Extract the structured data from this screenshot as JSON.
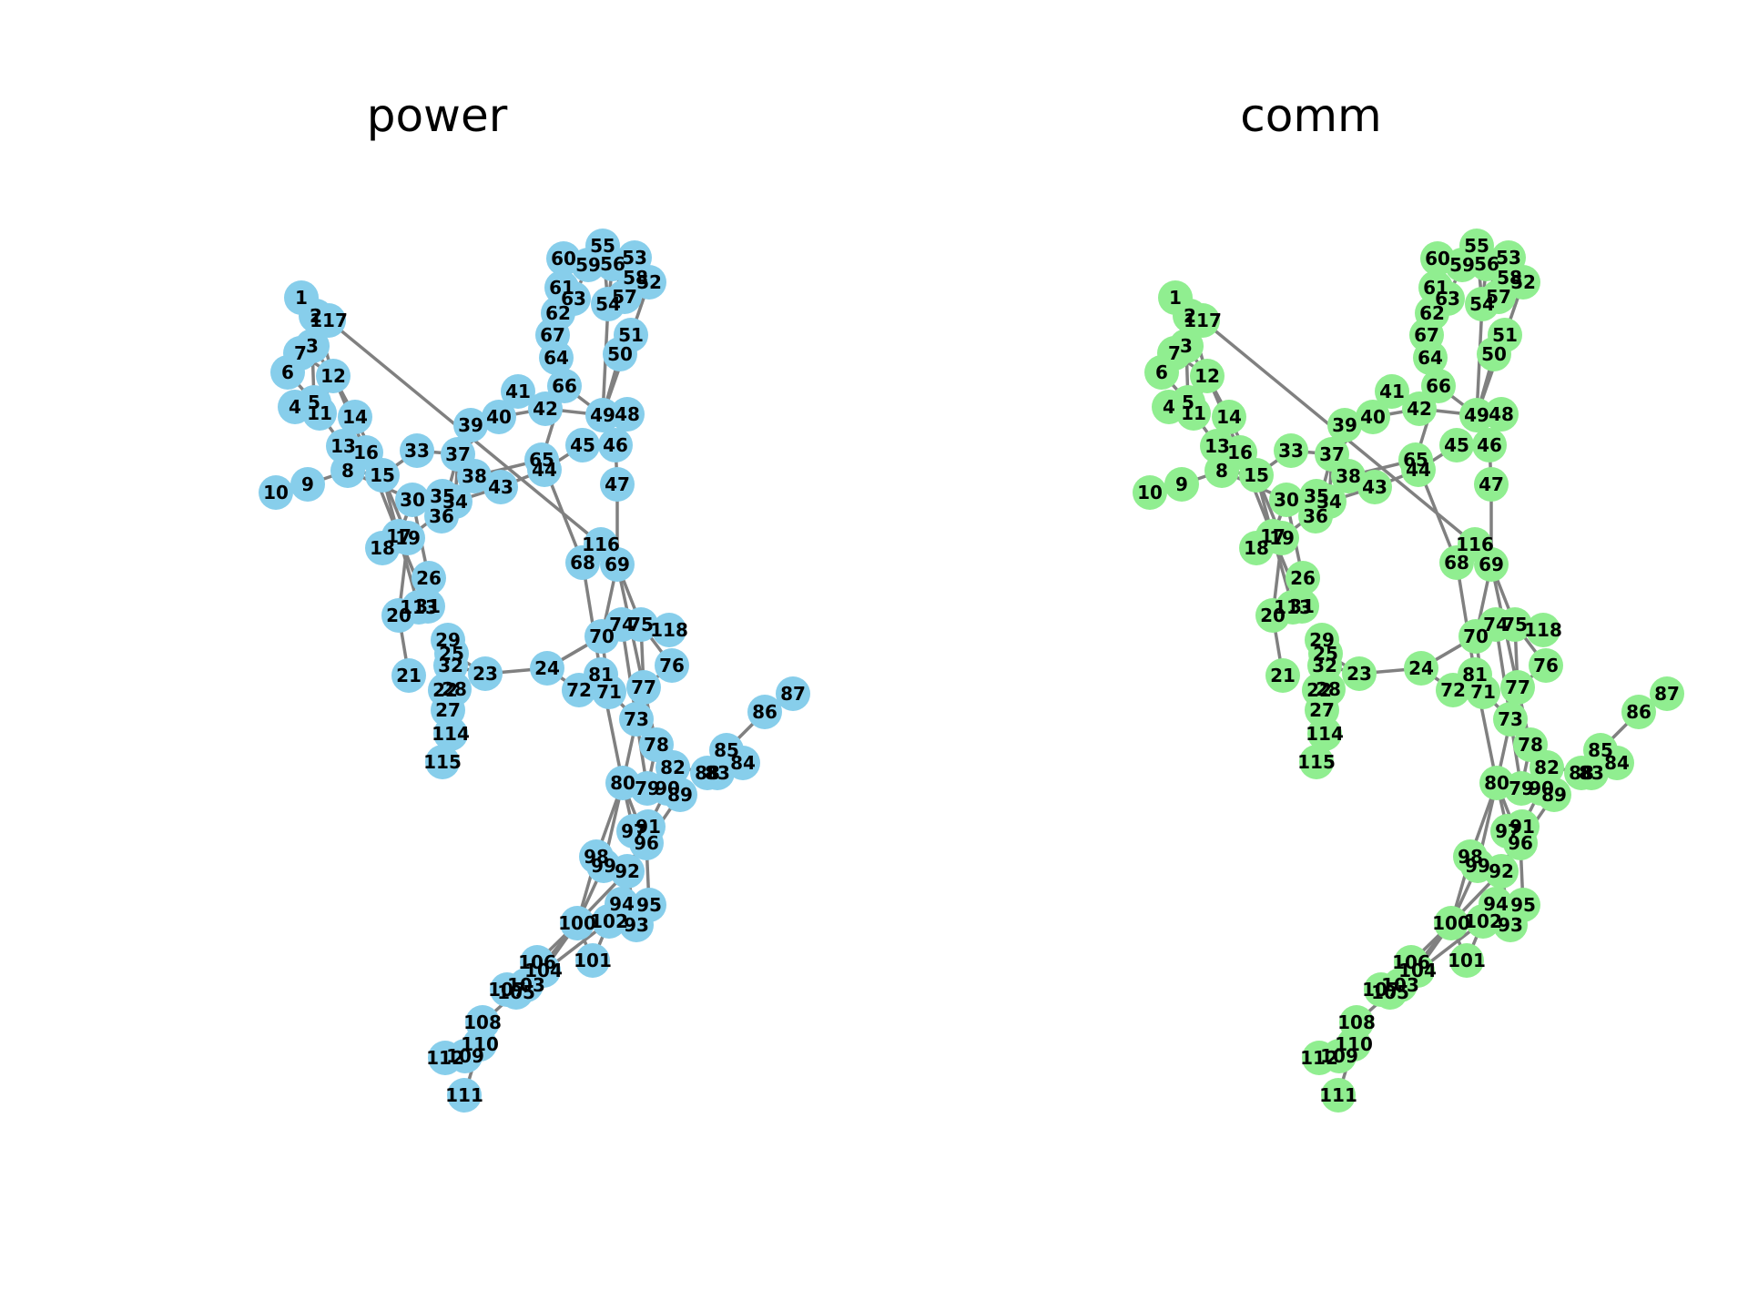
{
  "node_ids": [
    1,
    2,
    3,
    4,
    5,
    6,
    7,
    8,
    9,
    10,
    11,
    12,
    13,
    14,
    15,
    16,
    17,
    18,
    19,
    20,
    21,
    22,
    23,
    24,
    25,
    26,
    27,
    28,
    29,
    30,
    31,
    32,
    33,
    34,
    35,
    36,
    37,
    38,
    39,
    40,
    41,
    42,
    43,
    44,
    45,
    46,
    47,
    48,
    49,
    50,
    51,
    52,
    53,
    54,
    55,
    56,
    57,
    58,
    59,
    60,
    61,
    62,
    63,
    64,
    65,
    66,
    67,
    68,
    69,
    70,
    71,
    72,
    73,
    74,
    75,
    76,
    77,
    78,
    79,
    80,
    81,
    82,
    83,
    84,
    85,
    86,
    87,
    88,
    89,
    90,
    91,
    92,
    93,
    94,
    95,
    96,
    97,
    98,
    99,
    100,
    101,
    102,
    103,
    104,
    105,
    106,
    107,
    108,
    109,
    110,
    111,
    112,
    113,
    114,
    115,
    116,
    117,
    118
  ],
  "edges": [
    [
      1,
      3
    ],
    [
      2,
      12
    ],
    [
      3,
      5
    ],
    [
      3,
      12
    ],
    [
      4,
      11
    ],
    [
      5,
      6
    ],
    [
      5,
      11
    ],
    [
      6,
      7
    ],
    [
      7,
      12
    ],
    [
      8,
      9
    ],
    [
      8,
      30
    ],
    [
      8,
      15
    ],
    [
      9,
      10
    ],
    [
      11,
      12
    ],
    [
      11,
      13
    ],
    [
      12,
      14
    ],
    [
      12,
      16
    ],
    [
      13,
      15
    ],
    [
      14,
      15
    ],
    [
      15,
      17
    ],
    [
      15,
      19
    ],
    [
      15,
      33
    ],
    [
      16,
      17
    ],
    [
      17,
      18
    ],
    [
      17,
      30
    ],
    [
      17,
      31
    ],
    [
      17,
      113
    ],
    [
      18,
      19
    ],
    [
      19,
      20
    ],
    [
      19,
      34
    ],
    [
      20,
      21
    ],
    [
      23,
      24
    ],
    [
      23,
      25
    ],
    [
      23,
      32
    ],
    [
      24,
      70
    ],
    [
      25,
      27
    ],
    [
      26,
      30
    ],
    [
      27,
      28
    ],
    [
      27,
      32
    ],
    [
      28,
      29
    ],
    [
      30,
      17
    ],
    [
      31,
      17
    ],
    [
      33,
      37
    ],
    [
      34,
      37
    ],
    [
      34,
      43
    ],
    [
      35,
      36
    ],
    [
      36,
      37
    ],
    [
      37,
      38
    ],
    [
      37,
      39
    ],
    [
      37,
      40
    ],
    [
      38,
      65
    ],
    [
      39,
      40
    ],
    [
      40,
      42
    ],
    [
      41,
      42
    ],
    [
      42,
      49
    ],
    [
      42,
      66
    ],
    [
      43,
      44
    ],
    [
      44,
      45
    ],
    [
      44,
      65
    ],
    [
      45,
      46
    ],
    [
      46,
      47
    ],
    [
      46,
      48
    ],
    [
      47,
      69
    ],
    [
      49,
      50
    ],
    [
      49,
      51
    ],
    [
      49,
      54
    ],
    [
      49,
      66
    ],
    [
      51,
      52
    ],
    [
      52,
      53
    ],
    [
      54,
      55
    ],
    [
      54,
      56
    ],
    [
      55,
      59
    ],
    [
      56,
      58
    ],
    [
      56,
      57
    ],
    [
      60,
      62
    ],
    [
      60,
      61
    ],
    [
      61,
      63
    ],
    [
      62,
      67
    ],
    [
      63,
      59
    ],
    [
      64,
      67
    ],
    [
      64,
      66
    ],
    [
      65,
      66
    ],
    [
      65,
      68
    ],
    [
      66,
      67
    ],
    [
      68,
      81
    ],
    [
      68,
      116
    ],
    [
      69,
      70
    ],
    [
      69,
      75
    ],
    [
      69,
      77
    ],
    [
      70,
      71
    ],
    [
      70,
      74
    ],
    [
      70,
      75
    ],
    [
      70,
      24
    ],
    [
      71,
      72
    ],
    [
      71,
      73
    ],
    [
      72,
      24
    ],
    [
      73,
      74
    ],
    [
      73,
      79
    ],
    [
      74,
      75
    ],
    [
      74,
      118
    ],
    [
      75,
      76
    ],
    [
      75,
      77
    ],
    [
      76,
      77
    ],
    [
      77,
      78
    ],
    [
      77,
      80
    ],
    [
      78,
      79
    ],
    [
      79,
      80
    ],
    [
      80,
      81
    ],
    [
      80,
      96
    ],
    [
      80,
      97
    ],
    [
      80,
      98
    ],
    [
      80,
      99
    ],
    [
      82,
      83
    ],
    [
      83,
      84
    ],
    [
      83,
      85
    ],
    [
      84,
      85
    ],
    [
      85,
      86
    ],
    [
      86,
      87
    ],
    [
      85,
      88
    ],
    [
      89,
      90
    ],
    [
      89,
      92
    ],
    [
      90,
      91
    ],
    [
      91,
      92
    ],
    [
      92,
      93
    ],
    [
      92,
      94
    ],
    [
      92,
      100
    ],
    [
      93,
      94
    ],
    [
      94,
      95
    ],
    [
      95,
      96
    ],
    [
      96,
      97
    ],
    [
      98,
      100
    ],
    [
      99,
      100
    ],
    [
      100,
      101
    ],
    [
      100,
      103
    ],
    [
      100,
      104
    ],
    [
      100,
      106
    ],
    [
      101,
      102
    ],
    [
      102,
      103
    ],
    [
      103,
      104
    ],
    [
      103,
      105
    ],
    [
      104,
      105
    ],
    [
      105,
      106
    ],
    [
      105,
      107
    ],
    [
      105,
      108
    ],
    [
      108,
      109
    ],
    [
      108,
      110
    ],
    [
      109,
      110
    ],
    [
      110,
      111
    ],
    [
      110,
      112
    ],
    [
      114,
      32
    ],
    [
      114,
      115
    ],
    [
      116,
      117
    ],
    [
      69,
      116
    ]
  ],
  "panels": [
    {
      "title": "power",
      "node_color": "#87CEEB"
    },
    {
      "title": "comm",
      "node_color": "#90EE90"
    }
  ],
  "edge_color": "#808080"
}
